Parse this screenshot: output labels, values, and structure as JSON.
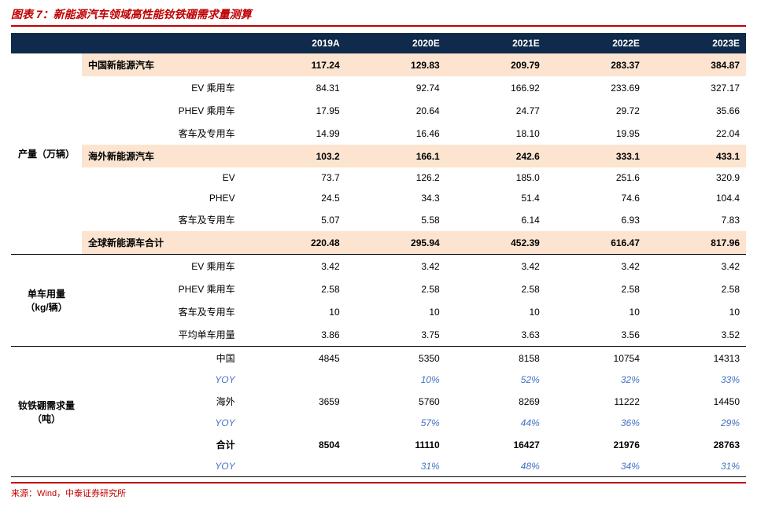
{
  "title": "图表 7：新能源汽车领域高性能钕铁硼需求量测算",
  "source": "来源：Wind，中泰证券研究所",
  "colors": {
    "title_border": "#c00000",
    "header_bg": "#0f2a4a",
    "header_fg": "#ffffff",
    "highlight_bg": "#fce4d0",
    "yoy_color": "#4472c4",
    "section_border": "#000000",
    "background": "#ffffff"
  },
  "headers": {
    "c1": "2019A",
    "c2": "2020E",
    "c3": "2021E",
    "c4": "2022E",
    "c5": "2023E"
  },
  "sections": {
    "production": {
      "label": "产量（万辆）",
      "rows": {
        "cn_nev": {
          "label": "中国新能源汽车",
          "v": [
            "117.24",
            "129.83",
            "209.79",
            "283.37",
            "384.87"
          ],
          "bold": true,
          "hl": true
        },
        "cn_ev": {
          "label": "EV 乘用车",
          "v": [
            "84.31",
            "92.74",
            "166.92",
            "233.69",
            "327.17"
          ]
        },
        "cn_phev": {
          "label": "PHEV 乘用车",
          "v": [
            "17.95",
            "20.64",
            "24.77",
            "29.72",
            "35.66"
          ]
        },
        "cn_bus": {
          "label": "客车及专用车",
          "v": [
            "14.99",
            "16.46",
            "18.10",
            "19.95",
            "22.04"
          ]
        },
        "os_nev": {
          "label": "海外新能源汽车",
          "v": [
            "103.2",
            "166.1",
            "242.6",
            "333.1",
            "433.1"
          ],
          "bold": true,
          "hl": true
        },
        "os_ev": {
          "label": "EV",
          "v": [
            "73.7",
            "126.2",
            "185.0",
            "251.6",
            "320.9"
          ]
        },
        "os_phev": {
          "label": "PHEV",
          "v": [
            "24.5",
            "34.3",
            "51.4",
            "74.6",
            "104.4"
          ]
        },
        "os_bus": {
          "label": "客车及专用车",
          "v": [
            "5.07",
            "5.58",
            "6.14",
            "6.93",
            "7.83"
          ]
        },
        "global": {
          "label": "全球新能源车合计",
          "v": [
            "220.48",
            "295.94",
            "452.39",
            "616.47",
            "817.96"
          ],
          "bold": true,
          "hl": true
        }
      }
    },
    "per_car": {
      "label": "单车用量（kg/辆）",
      "rows": {
        "ev": {
          "label": "EV 乘用车",
          "v": [
            "3.42",
            "3.42",
            "3.42",
            "3.42",
            "3.42"
          ]
        },
        "phev": {
          "label": "PHEV 乘用车",
          "v": [
            "2.58",
            "2.58",
            "2.58",
            "2.58",
            "2.58"
          ]
        },
        "bus": {
          "label": "客车及专用车",
          "v": [
            "10",
            "10",
            "10",
            "10",
            "10"
          ]
        },
        "avg": {
          "label": "平均单车用量",
          "v": [
            "3.86",
            "3.75",
            "3.63",
            "3.56",
            "3.52"
          ]
        }
      }
    },
    "demand": {
      "label": "钕铁硼需求量（吨）",
      "rows": {
        "cn": {
          "label": "中国",
          "v": [
            "4845",
            "5350",
            "8158",
            "10754",
            "14313"
          ]
        },
        "cn_yoy": {
          "label": "YOY",
          "v": [
            "",
            "10%",
            "52%",
            "32%",
            "33%"
          ],
          "yoy": true
        },
        "os": {
          "label": "海外",
          "v": [
            "3659",
            "5760",
            "8269",
            "11222",
            "14450"
          ]
        },
        "os_yoy": {
          "label": "YOY",
          "v": [
            "",
            "57%",
            "44%",
            "36%",
            "29%"
          ],
          "yoy": true
        },
        "total": {
          "label": "合计",
          "v": [
            "8504",
            "11110",
            "16427",
            "21976",
            "28763"
          ],
          "bold": true
        },
        "t_yoy": {
          "label": "YOY",
          "v": [
            "",
            "31%",
            "48%",
            "34%",
            "31%"
          ],
          "yoy": true
        }
      }
    }
  }
}
